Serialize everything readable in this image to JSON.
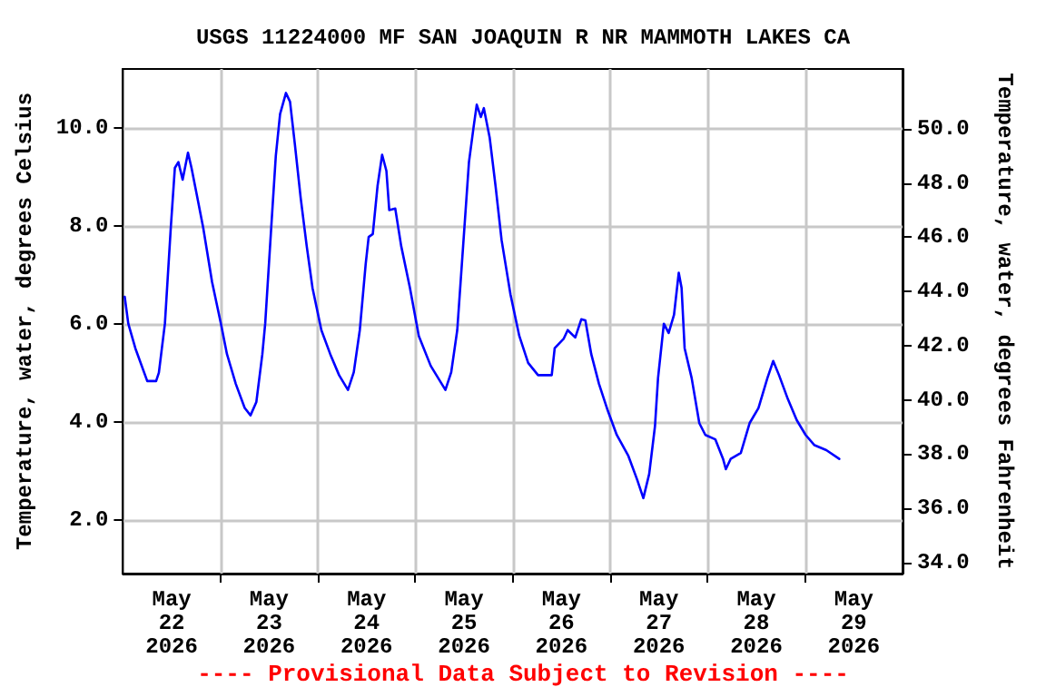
{
  "chart_data": {
    "type": "line",
    "title": "USGS 11224000 MF SAN JOAQUIN R NR MAMMOTH LAKES CA",
    "ylabel": "Temperature, water, degrees Celsius",
    "y2label": "Temperature, water, degrees Fahrenheit",
    "annotations": [
      "---- Provisional Data Subject to Revision ----"
    ],
    "series": [
      {
        "color": "#0000ff",
        "x": [
          "2026-05-22T00:26",
          "2026-05-22T01:19",
          "2026-05-22T03:03",
          "2026-05-22T05:59",
          "2026-05-22T08:10",
          "2026-05-22T08:51",
          "2026-05-22T10:20",
          "2026-05-22T11:47",
          "2026-05-22T12:47",
          "2026-05-22T13:39",
          "2026-05-22T14:42",
          "2026-05-22T16:01",
          "2026-05-22T16:53",
          "2026-05-22T18:20",
          "2026-05-22T19:46",
          "2026-05-22T21:57",
          "2026-05-23T00:08",
          "2026-05-23T01:37",
          "2026-05-23T03:48",
          "2026-05-23T05:59",
          "2026-05-23T07:25",
          "2026-05-23T08:51",
          "2026-05-23T10:20",
          "2026-05-23T11:02",
          "2026-05-23T12:31",
          "2026-05-23T13:39",
          "2026-05-23T14:42",
          "2026-05-23T16:09",
          "2026-05-23T17:09",
          "2026-05-23T18:20",
          "2026-05-23T19:46",
          "2026-05-23T21:15",
          "2026-05-23T22:41",
          "2026-05-24T00:52",
          "2026-05-24T03:03",
          "2026-05-24T05:14",
          "2026-05-24T07:25",
          "2026-05-24T08:51",
          "2026-05-24T10:20",
          "2026-05-24T11:47",
          "2026-05-24T12:31",
          "2026-05-24T13:32",
          "2026-05-24T14:42",
          "2026-05-24T15:50",
          "2026-05-24T16:53",
          "2026-05-24T17:35",
          "2026-05-24T19:04",
          "2026-05-24T20:31",
          "2026-05-24T22:41",
          "2026-05-25T00:52",
          "2026-05-25T03:48",
          "2026-05-25T07:25",
          "2026-05-25T08:51",
          "2026-05-25T10:20",
          "2026-05-25T11:47",
          "2026-05-25T13:13",
          "2026-05-25T14:24",
          "2026-05-25T15:08",
          "2026-05-25T16:09",
          "2026-05-25T16:53",
          "2026-05-25T18:20",
          "2026-05-25T19:46",
          "2026-05-25T21:15",
          "2026-05-25T23:26",
          "2026-05-26T01:37",
          "2026-05-26T03:48",
          "2026-05-26T06:14",
          "2026-05-26T09:36",
          "2026-05-26T10:20",
          "2026-05-26T12:31",
          "2026-05-26T13:32",
          "2026-05-26T15:24",
          "2026-05-26T16:53",
          "2026-05-26T17:53",
          "2026-05-26T19:20",
          "2026-05-26T21:15",
          "2026-05-26T23:26",
          "2026-05-27T01:37",
          "2026-05-27T04:29",
          "2026-05-27T06:40",
          "2026-05-27T08:10",
          "2026-05-27T09:36",
          "2026-05-27T11:02",
          "2026-05-27T11:47",
          "2026-05-27T13:13",
          "2026-05-27T14:24",
          "2026-05-27T15:43",
          "2026-05-27T16:53",
          "2026-05-27T17:35",
          "2026-05-27T18:20",
          "2026-05-27T20:04",
          "2026-05-27T21:57",
          "2026-05-27T23:26",
          "2026-05-28T01:53",
          "2026-05-28T03:48",
          "2026-05-28T04:29",
          "2026-05-28T05:40",
          "2026-05-28T08:10",
          "2026-05-28T10:20",
          "2026-05-28T12:31",
          "2026-05-28T14:43",
          "2026-05-28T16:09",
          "2026-05-28T17:35",
          "2026-05-28T19:46",
          "2026-05-28T21:57",
          "2026-05-29T00:08",
          "2026-05-29T02:19",
          "2026-05-29T05:14",
          "2026-05-29T08:25"
        ],
        "values": [
          6.55,
          6.0,
          5.5,
          4.83,
          4.83,
          5.0,
          6.0,
          7.96,
          9.18,
          9.3,
          8.94,
          9.49,
          9.18,
          8.57,
          7.96,
          6.85,
          6.0,
          5.38,
          4.77,
          4.28,
          4.13,
          4.4,
          5.38,
          6.0,
          7.96,
          9.43,
          10.28,
          10.71,
          10.53,
          9.67,
          8.57,
          7.59,
          6.73,
          5.87,
          5.38,
          4.95,
          4.65,
          5.01,
          5.87,
          7.22,
          7.77,
          7.83,
          8.81,
          9.45,
          9.12,
          8.32,
          8.35,
          7.59,
          6.73,
          5.75,
          5.14,
          4.65,
          5.01,
          5.87,
          7.59,
          9.3,
          10.04,
          10.47,
          10.22,
          10.4,
          9.79,
          8.81,
          7.71,
          6.6,
          5.75,
          5.2,
          4.95,
          4.95,
          5.5,
          5.69,
          5.87,
          5.72,
          6.09,
          6.07,
          5.38,
          4.77,
          4.22,
          3.73,
          3.3,
          2.81,
          2.44,
          2.93,
          3.91,
          4.89,
          6.0,
          5.81,
          6.18,
          7.04,
          6.73,
          5.5,
          4.89,
          3.97,
          3.73,
          3.64,
          3.24,
          3.03,
          3.24,
          3.36,
          3.97,
          4.28,
          4.89,
          5.24,
          4.95,
          4.46,
          4.03,
          3.73,
          3.52,
          3.42,
          3.24
        ]
      }
    ],
    "xlim": [
      "2026-05-22",
      "2026-05-30"
    ],
    "xticks": [
      {
        "value": "2026-05-22T12:00",
        "label": "May\n22\n2026"
      },
      {
        "value": "2026-05-23T12:00",
        "label": "May\n23\n2026"
      },
      {
        "value": "2026-05-24T12:00",
        "label": "May\n24\n2026"
      },
      {
        "value": "2026-05-25T12:00",
        "label": "May\n25\n2026"
      },
      {
        "value": "2026-05-26T12:00",
        "label": "May\n26\n2026"
      },
      {
        "value": "2026-05-27T12:00",
        "label": "May\n27\n2026"
      },
      {
        "value": "2026-05-28T12:00",
        "label": "May\n28\n2026"
      },
      {
        "value": "2026-05-29T12:00",
        "label": "May\n29\n2026"
      },
      {
        "value": "2026-05-23",
        "label": null
      },
      {
        "value": "2026-05-24",
        "label": null
      },
      {
        "value": "2026-05-25",
        "label": null
      },
      {
        "value": "2026-05-26",
        "label": null
      },
      {
        "value": "2026-05-27",
        "label": null
      },
      {
        "value": "2026-05-28",
        "label": null
      },
      {
        "value": "2026-05-29",
        "label": null
      }
    ],
    "ylim": [
      0.9,
      11.2
    ],
    "yticks": [
      {
        "value": 2,
        "label": "2.0"
      },
      {
        "value": 4,
        "label": "4.0"
      },
      {
        "value": 6,
        "label": "6.0"
      },
      {
        "value": 8,
        "label": "8.0"
      },
      {
        "value": 10,
        "label": "10.0"
      }
    ],
    "y2lim": [
      33.6,
      52.2
    ],
    "y2ticks": [
      {
        "value": 34,
        "label": "34.0"
      },
      {
        "value": 36,
        "label": "36.0"
      },
      {
        "value": 38,
        "label": "38.0"
      },
      {
        "value": 40,
        "label": "40.0"
      },
      {
        "value": 42,
        "label": "42.0"
      },
      {
        "value": 44,
        "label": "44.0"
      },
      {
        "value": 46,
        "label": "46.0"
      },
      {
        "value": 48,
        "label": "48.0"
      },
      {
        "value": 50,
        "label": "50.0"
      }
    ],
    "grid": true,
    "marker": "none",
    "line_style": "solid"
  }
}
